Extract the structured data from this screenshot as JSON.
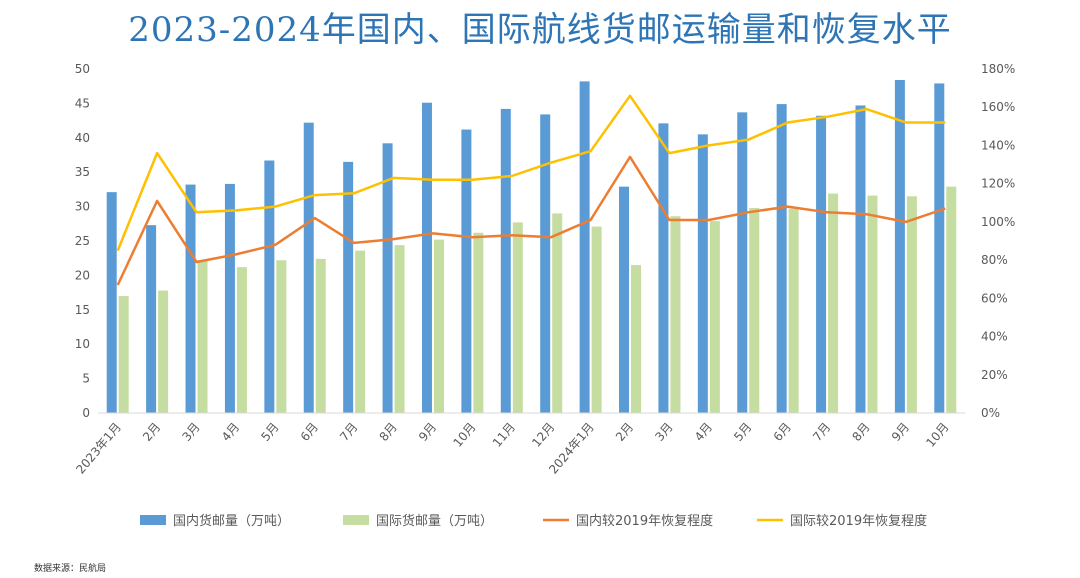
{
  "title": "2023-2024年国内、国际航线货邮运输量和恢复水平",
  "source": "数据来源：民航局",
  "chart_data": {
    "type": "bar",
    "title": "2023-2024年国内、国际航线货邮运输量和恢复水平",
    "categories": [
      "2023年1月",
      "2月",
      "3月",
      "4月",
      "5月",
      "6月",
      "7月",
      "8月",
      "9月",
      "10月",
      "11月",
      "12月",
      "2024年1月",
      "2月",
      "3月",
      "4月",
      "5月",
      "6月",
      "7月",
      "8月",
      "9月",
      "10月"
    ],
    "ylim": [
      0,
      50
    ],
    "y_ticks": [
      0,
      5,
      10,
      15,
      20,
      25,
      30,
      35,
      40,
      45,
      50
    ],
    "y2lim": [
      0,
      180
    ],
    "y2_ticks": [
      "0%",
      "20%",
      "40%",
      "60%",
      "80%",
      "100%",
      "120%",
      "140%",
      "160%",
      "180%"
    ],
    "series": [
      {
        "name": "国内货邮量（万吨）",
        "type": "bar",
        "color": "#5B9BD5",
        "axis": "left",
        "values": [
          32.1,
          27.3,
          33.2,
          33.3,
          36.7,
          42.2,
          36.5,
          39.2,
          45.1,
          41.2,
          44.2,
          43.4,
          48.2,
          32.9,
          42.1,
          40.5,
          43.7,
          44.9,
          43.2,
          44.7,
          48.4,
          47.9
        ]
      },
      {
        "name": "国际货邮量（万吨）",
        "type": "bar",
        "color": "#C5DDA0",
        "axis": "left",
        "values": [
          17.0,
          17.8,
          22.2,
          21.2,
          22.2,
          22.4,
          23.6,
          24.4,
          25.2,
          26.2,
          27.7,
          29.0,
          27.1,
          21.5,
          28.6,
          27.9,
          29.8,
          29.7,
          31.9,
          31.6,
          31.5,
          32.9
        ]
      },
      {
        "name": "国内较2019年恢复程度",
        "type": "line",
        "color": "#ED7D31",
        "axis": "right",
        "values": [
          67,
          111,
          79,
          83,
          88,
          102,
          89,
          91,
          94,
          92,
          93,
          92,
          101,
          134,
          101,
          101,
          105,
          108,
          105,
          104,
          100,
          107
        ]
      },
      {
        "name": "国际较2019年恢复程度",
        "type": "line",
        "color": "#FFC000",
        "axis": "right",
        "values": [
          85,
          136,
          105,
          106,
          108,
          114,
          115,
          123,
          122,
          122,
          124,
          131,
          137,
          166,
          136,
          140,
          143,
          152,
          155,
          159,
          152,
          152
        ]
      }
    ],
    "grid": false,
    "legend_position": "bottom"
  }
}
